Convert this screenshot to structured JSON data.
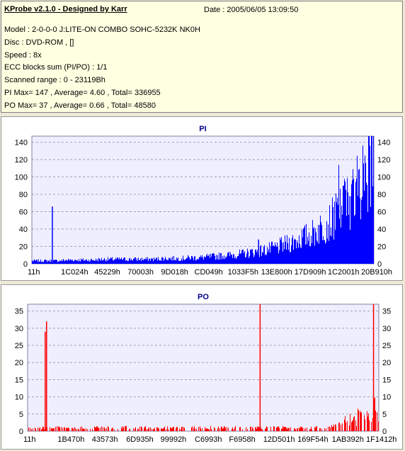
{
  "info": {
    "title": "KProbe v2.1.0 - Designed by Karr",
    "date": "Date : 2005/06/05 13:09:50",
    "lines": [
      "Model : 2-0-0-0 J:LITE-ON COMBO SOHC-5232K NK0H",
      "Disc : DVD-ROM ,  []",
      "Speed : 8x",
      "ECC blocks sum (PI/PO) : 1/1",
      "Scanned range : 0 - 23119Bh",
      "PI Max= 147 , Average= 4.60 , Total= 336955",
      "PO Max= 37 , Average= 0.66 , Total= 48580"
    ]
  },
  "colors": {
    "pi_series": "#0000ff",
    "po_series": "#ff0000",
    "plot_bg": "#eeeeff",
    "title_text": "#00008b"
  },
  "chart_data": [
    {
      "type": "bar",
      "title": "PI",
      "ylim": [
        0,
        147
      ],
      "yticks": [
        0,
        20,
        40,
        60,
        80,
        100,
        120,
        140
      ],
      "xticks": [
        "11h",
        "1C024h",
        "45229h",
        "70003h",
        "9D018h",
        "CD049h",
        "1033F5h",
        "13E800h",
        "17D909h",
        "1C2001h",
        "20B910h"
      ],
      "grid": true,
      "series": [
        {
          "spikes": [
            {
              "x_fraction": 0.06,
              "value": 66
            },
            {
              "x_fraction": 0.663,
              "value": 28
            }
          ],
          "baseline_profile": [
            4,
            4,
            4,
            4,
            5,
            5,
            5,
            5,
            6,
            6,
            6,
            6,
            6,
            6,
            6,
            7,
            7,
            7,
            8,
            8,
            9,
            10,
            11,
            12,
            13,
            15,
            17,
            19,
            22,
            26,
            30,
            35,
            40,
            48,
            56,
            68,
            82,
            100,
            118,
            135
          ],
          "max_value": 147
        }
      ]
    },
    {
      "type": "bar",
      "title": "PO",
      "ylim": [
        0,
        37
      ],
      "yticks": [
        0,
        5,
        10,
        15,
        20,
        25,
        30,
        35
      ],
      "xticks": [
        "11h",
        "1B470h",
        "43573h",
        "6D935h",
        "99992h",
        "C6993h",
        "F6958h",
        "12D501h",
        "169F54h",
        "1AB392h",
        "1F1412h"
      ],
      "grid": true,
      "series": [
        {
          "spikes": [
            {
              "x_fraction": 0.054,
              "value": 32
            },
            {
              "x_fraction": 0.05,
              "value": 29
            },
            {
              "x_fraction": 0.662,
              "value": 37
            }
          ],
          "baseline_profile": [
            1,
            1,
            1,
            1,
            1,
            1,
            1,
            1,
            1,
            1,
            1,
            1,
            1,
            1,
            1,
            1,
            1,
            1,
            1,
            1,
            1,
            1,
            1,
            1,
            1,
            1,
            1,
            1,
            1,
            1,
            1,
            1,
            1,
            1,
            2,
            2,
            3,
            3,
            4,
            5
          ],
          "max_value": 37
        }
      ]
    }
  ]
}
